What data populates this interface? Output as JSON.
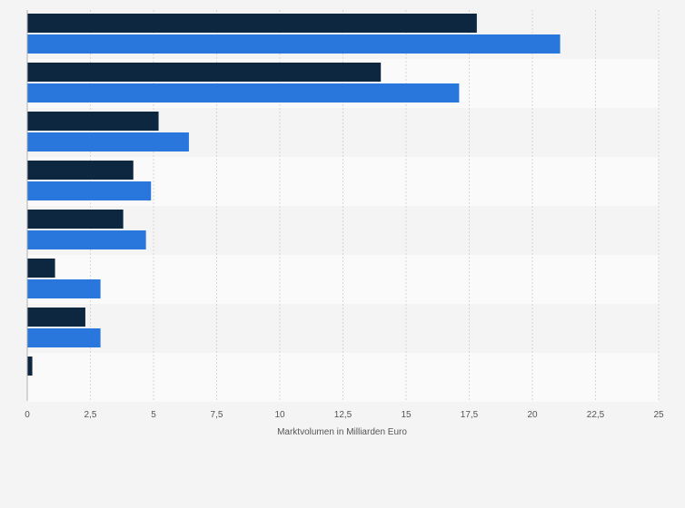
{
  "chart_data": {
    "type": "bar",
    "orientation": "horizontal",
    "categories": [
      "",
      "",
      "",
      "",
      "",
      "",
      "",
      ""
    ],
    "series": [
      {
        "color": "#0d2740",
        "values": [
          17.8,
          14.0,
          5.2,
          4.2,
          3.8,
          1.1,
          2.3,
          0.2
        ]
      },
      {
        "color": "#2976dc",
        "values": [
          21.1,
          17.1,
          6.4,
          4.9,
          4.7,
          2.9,
          2.9,
          null
        ]
      }
    ],
    "xlabel": "Marktvolumen in Milliarden Euro",
    "ylabel": "",
    "xlim": [
      0,
      25
    ],
    "xticks": [
      0,
      2.5,
      5,
      7.5,
      10,
      12.5,
      15,
      17.5,
      20,
      22.5,
      25
    ],
    "xtick_labels": [
      "0",
      "2,5",
      "5",
      "7,5",
      "10",
      "12,5",
      "15",
      "17,5",
      "20",
      "22,5",
      "25"
    ],
    "grid": true,
    "legend": "none"
  }
}
